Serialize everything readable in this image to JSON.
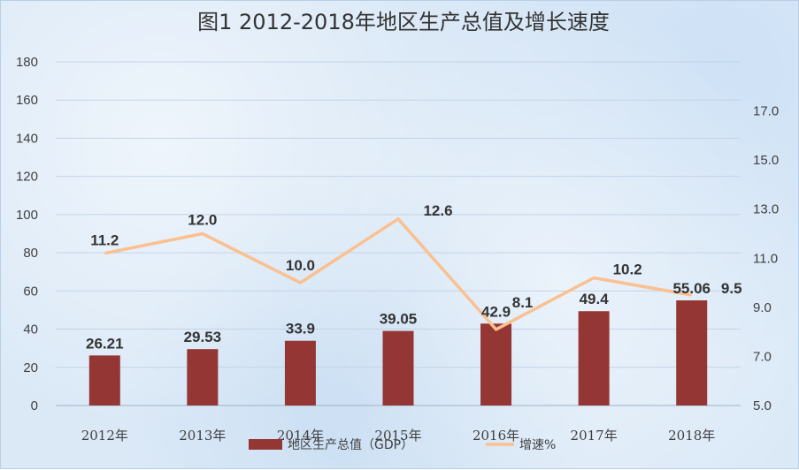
{
  "chart_data": {
    "type": "bar",
    "title": "图1  2012-2018年地区生产总值及增长速度",
    "categories": [
      "2012年",
      "2013年",
      "2014年",
      "2015年",
      "2016年",
      "2017年",
      "2018年"
    ],
    "series": [
      {
        "name": "地区生产总值（GDP）",
        "type": "bar",
        "axis": "left",
        "values": [
          26.21,
          29.53,
          33.9,
          39.05,
          42.9,
          49.4,
          55.06
        ],
        "labels": [
          "26.21",
          "29.53",
          "33.9",
          "39.05",
          "42.9",
          "49.4",
          "55.06"
        ],
        "color": "#943634"
      },
      {
        "name": "增速%",
        "type": "line",
        "axis": "right",
        "values": [
          11.2,
          12.0,
          10.0,
          12.6,
          8.1,
          10.2,
          9.5
        ],
        "labels": [
          "11.2",
          "12.0",
          "10.0",
          "12.6",
          "8.1",
          "10.2",
          "9.5"
        ],
        "color": "#fac090"
      }
    ],
    "y_left": {
      "min": 0,
      "max": 180,
      "ticks": [
        "0",
        "20",
        "40",
        "60",
        "80",
        "100",
        "120",
        "140",
        "160",
        "180"
      ]
    },
    "y_right": {
      "min": 5.0,
      "max": 19.0,
      "ticks": [
        "5.0",
        "7.0",
        "9.0",
        "11.0",
        "13.0",
        "15.0",
        "17.0"
      ]
    },
    "grid": true,
    "legend_position": "bottom"
  }
}
